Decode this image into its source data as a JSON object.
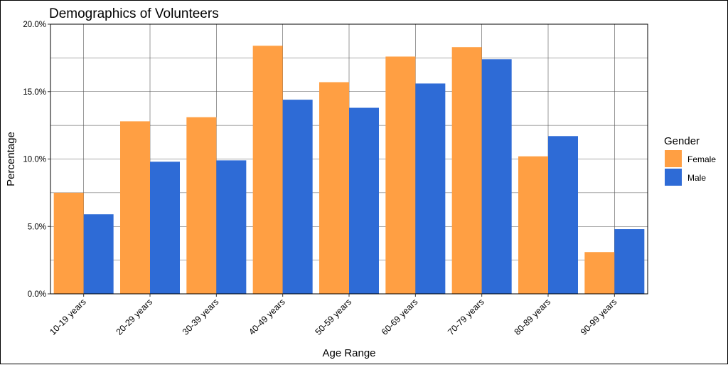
{
  "chart_data": {
    "type": "bar",
    "title": "Demographics of Volunteers",
    "xlabel": "Age Range",
    "ylabel": "Percentage",
    "categories": [
      "10-19 years",
      "20-29 years",
      "30-39 years",
      "40-49 years",
      "50-59 years",
      "60-69 years",
      "70-79 years",
      "80-89 years",
      "90-99 years"
    ],
    "series": [
      {
        "name": "Female",
        "color": "#FF9F43",
        "values": [
          7.5,
          12.8,
          13.1,
          18.4,
          15.7,
          17.6,
          18.3,
          10.2,
          3.1
        ]
      },
      {
        "name": "Male",
        "color": "#2E6BD6",
        "values": [
          5.9,
          9.8,
          9.9,
          14.4,
          13.8,
          15.6,
          17.4,
          11.7,
          4.8
        ]
      }
    ],
    "ylim": [
      0,
      20
    ],
    "yticks": [
      0,
      5,
      10,
      15,
      20
    ],
    "ytick_labels": [
      "0.0%",
      "5.0%",
      "10.0%",
      "15.0%",
      "20.0%"
    ],
    "grid": true,
    "legend": {
      "title": "Gender",
      "position": "right"
    }
  }
}
